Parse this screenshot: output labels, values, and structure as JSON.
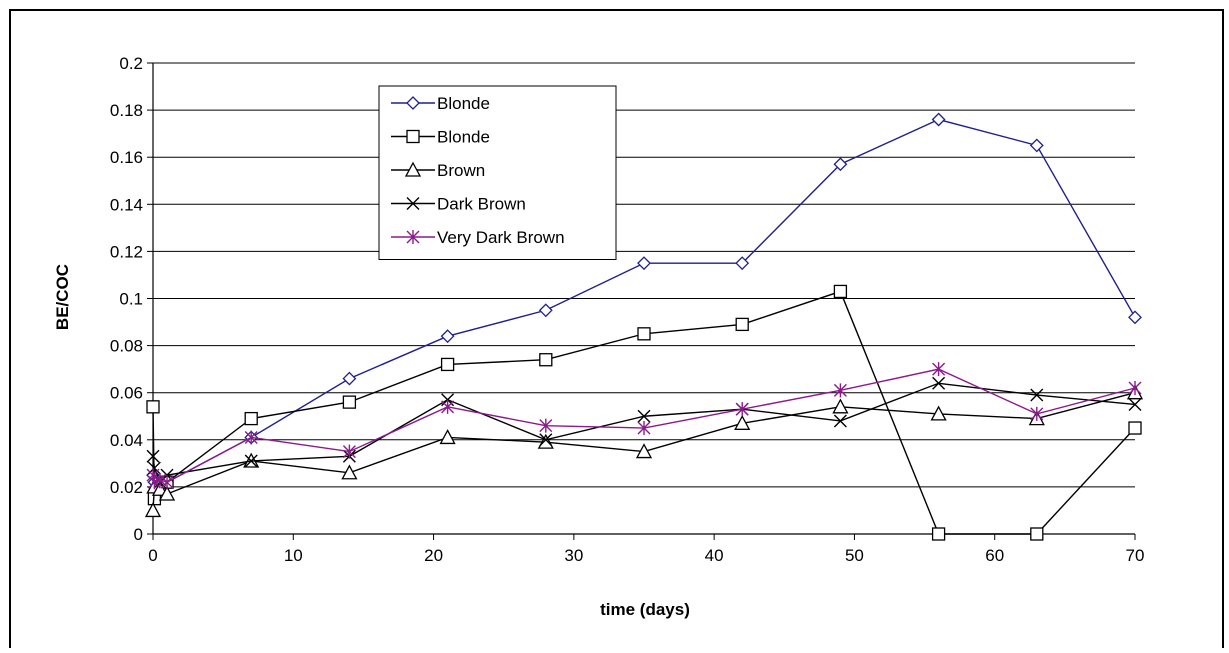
{
  "chart_data": {
    "type": "line",
    "title": "",
    "xlabel": "time (days)",
    "ylabel": "BE/COC",
    "xlim": [
      0,
      70
    ],
    "ylim": [
      0,
      0.2
    ],
    "x_ticks": [
      0,
      10,
      20,
      30,
      40,
      50,
      60,
      70
    ],
    "x_tick_labels": [
      "0",
      "10",
      "20",
      "30",
      "40",
      "50",
      "60",
      "70"
    ],
    "y_ticks": [
      0,
      0.02,
      0.04,
      0.06,
      0.08,
      0.1,
      0.12,
      0.14,
      0.16,
      0.18,
      0.2
    ],
    "y_tick_labels": [
      "0",
      "0.02",
      "0.04",
      "0.06",
      "0.08",
      "0.1",
      "0.12",
      "0.14",
      "0.16",
      "0.18",
      "0.2"
    ],
    "grid": "horizontal",
    "legend_position": "top-left inside plot",
    "series": [
      {
        "name": "Blonde",
        "color": "#1F1F8F",
        "marker": "diamond",
        "points": [
          [
            0,
            0.025
          ],
          [
            0.1,
            0.022
          ],
          [
            0.5,
            0.021
          ],
          [
            1,
            0.022
          ],
          [
            7,
            0.041
          ],
          [
            14,
            0.066
          ],
          [
            21,
            0.084
          ],
          [
            28,
            0.095
          ],
          [
            35,
            0.115
          ],
          [
            42,
            0.115
          ],
          [
            49,
            0.157
          ],
          [
            56,
            0.176
          ],
          [
            63,
            0.165
          ],
          [
            70,
            0.092
          ]
        ]
      },
      {
        "name": "Blonde",
        "color": "#000000",
        "marker": "square",
        "points": [
          [
            0,
            0.054
          ],
          [
            0.1,
            0.015
          ],
          [
            0.5,
            0.02
          ],
          [
            1,
            0.022
          ],
          [
            7,
            0.049
          ],
          [
            14,
            0.056
          ],
          [
            21,
            0.072
          ],
          [
            28,
            0.074
          ],
          [
            35,
            0.085
          ],
          [
            42,
            0.089
          ],
          [
            49,
            0.103
          ],
          [
            56,
            0.0
          ],
          [
            63,
            0.0
          ],
          [
            70,
            0.045
          ]
        ]
      },
      {
        "name": "Brown",
        "color": "#000000",
        "marker": "triangle",
        "points": [
          [
            0,
            0.01
          ],
          [
            0.1,
            0.02
          ],
          [
            0.5,
            0.019
          ],
          [
            1,
            0.017
          ],
          [
            7,
            0.031
          ],
          [
            14,
            0.026
          ],
          [
            21,
            0.041
          ],
          [
            28,
            0.039
          ],
          [
            35,
            0.035
          ],
          [
            42,
            0.047
          ],
          [
            49,
            0.054
          ],
          [
            56,
            0.051
          ],
          [
            63,
            0.049
          ],
          [
            70,
            0.06
          ]
        ]
      },
      {
        "name": "Dark Brown",
        "color": "#000000",
        "marker": "x",
        "points": [
          [
            0,
            0.033
          ],
          [
            0.1,
            0.028
          ],
          [
            0.5,
            0.022
          ],
          [
            1,
            0.025
          ],
          [
            7,
            0.031
          ],
          [
            14,
            0.033
          ],
          [
            21,
            0.057
          ],
          [
            28,
            0.04
          ],
          [
            35,
            0.05
          ],
          [
            42,
            0.053
          ],
          [
            49,
            0.048
          ],
          [
            56,
            0.064
          ],
          [
            63,
            0.059
          ],
          [
            70,
            0.055
          ]
        ]
      },
      {
        "name": "Very Dark Brown",
        "color": "#8B1A8B",
        "marker": "asterisk",
        "points": [
          [
            0,
            0.025
          ],
          [
            0.1,
            0.022
          ],
          [
            0.5,
            0.023
          ],
          [
            1,
            0.022
          ],
          [
            7,
            0.041
          ],
          [
            14,
            0.035
          ],
          [
            21,
            0.054
          ],
          [
            28,
            0.046
          ],
          [
            35,
            0.045
          ],
          [
            42,
            0.053
          ],
          [
            49,
            0.061
          ],
          [
            56,
            0.07
          ],
          [
            63,
            0.051
          ],
          [
            70,
            0.062
          ]
        ]
      }
    ]
  }
}
